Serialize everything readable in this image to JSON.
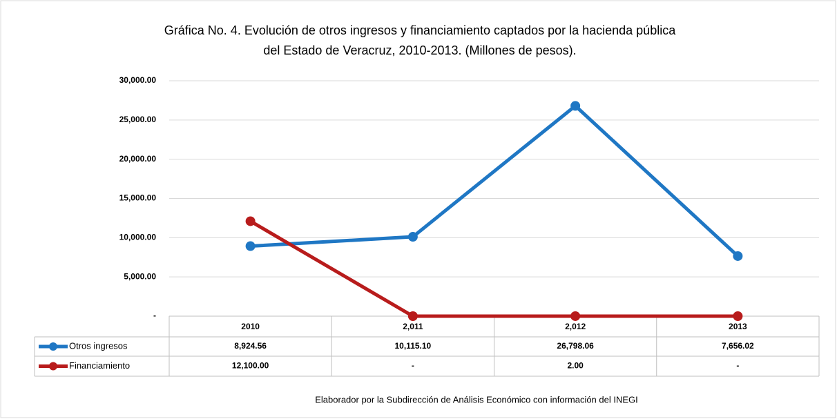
{
  "chart_data": {
    "type": "line",
    "title": [
      "Gráfica No. 4. Evolución de otros ingresos y financiamiento captados por la hacienda pública",
      "del Estado de Veracruz, 2010-2013. (Millones de pesos)."
    ],
    "categories": [
      "2010",
      "2,011",
      "2,012",
      "2013"
    ],
    "series": [
      {
        "name": "Otros ingresos",
        "color": "#1f77c4",
        "values": [
          8924.56,
          10115.1,
          26798.06,
          7656.02
        ],
        "value_labels": [
          "8,924.56",
          "10,115.10",
          "26,798.06",
          "7,656.02"
        ]
      },
      {
        "name": "Financiamiento",
        "color": "#b81c1c",
        "values": [
          12100,
          0,
          2,
          0
        ],
        "value_labels": [
          "12,100.00",
          "-",
          "2.00",
          "-"
        ]
      }
    ],
    "ylim": [
      0,
      30000
    ],
    "yticks": [
      {
        "value": 0,
        "label": "-"
      },
      {
        "value": 5000,
        "label": "5,000.00"
      },
      {
        "value": 10000,
        "label": "10,000.00"
      },
      {
        "value": 15000,
        "label": "15,000.00"
      },
      {
        "value": 20000,
        "label": "20,000.00"
      },
      {
        "value": 25000,
        "label": "25,000.00"
      },
      {
        "value": 30000,
        "label": "30,000.00"
      }
    ],
    "grid": true,
    "source": "Elaborador por la Subdirección de Análisis Económico con información del INEGI"
  }
}
